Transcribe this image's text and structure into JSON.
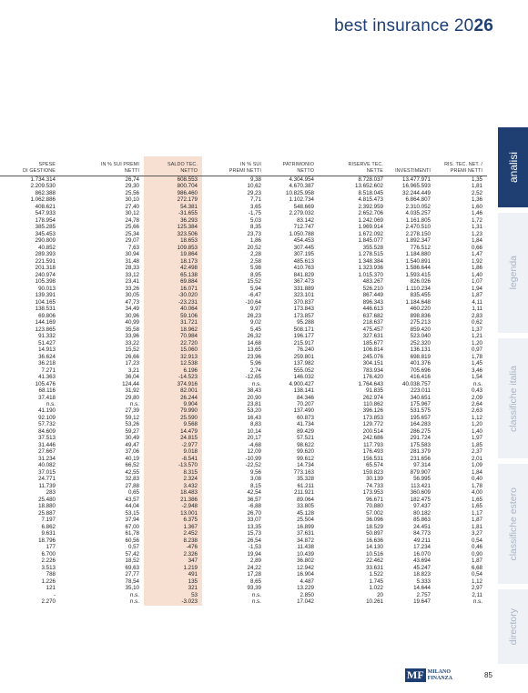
{
  "header": {
    "title_prefix": "best insurance 20",
    "title_bold": "26"
  },
  "table": {
    "headers": [
      "SPESE\nDI GESTIONE",
      "IN % SUI PREMI\nNETTI",
      "SALDO TEC.\nNETTO",
      "IN % SUI\nPREMI NETTI",
      "PATRIMONIO\nNETTO",
      "RISERVE TEC.\nNETTE",
      "INVESTIMENTI",
      "RIS. TEC. NET. /\nPREMI NETTI"
    ],
    "rows": [
      [
        "1.734.314",
        "26,74",
        "608.553",
        "9,38",
        "4.304.954",
        "8.728.037",
        "13.477.971",
        "1,35"
      ],
      [
        "2.209.530",
        "29,30",
        "800.704",
        "10,62",
        "4.670.387",
        "13.652.602",
        "16.965.593",
        "1,81"
      ],
      [
        "862.388",
        "25,56",
        "986.460",
        "29,23",
        "10.825.958",
        "8.518.045",
        "32.244.449",
        "2,52"
      ],
      [
        "1.062.886",
        "30,10",
        "272.179",
        "7,71",
        "1.102.734",
        "4.815.473",
        "6.864.807",
        "1,36"
      ],
      [
        "408.621",
        "27,40",
        "54.381",
        "3,65",
        "548.669",
        "2.392.959",
        "2.310.052",
        "1,60"
      ],
      [
        "547.933",
        "30,12",
        "-31.655",
        "-1,75",
        "2.279.032",
        "2.652.706",
        "4.035.257",
        "1,46"
      ],
      [
        "178.954",
        "24,78",
        "36.293",
        "5,03",
        "83.142",
        "1.242.069",
        "1.161.805",
        "1,72"
      ],
      [
        "385.285",
        "25,66",
        "125.384",
        "8,35",
        "712.747",
        "1.969.914",
        "2.470.510",
        "1,31"
      ],
      [
        "345.453",
        "25,34",
        "323.506",
        "23,73",
        "1.050.788",
        "1.672.092",
        "2.278.150",
        "1,23"
      ],
      [
        "290.809",
        "29,07",
        "18.653",
        "1,86",
        "454.453",
        "1.845.077",
        "1.892.347",
        "1,84"
      ],
      [
        "40.852",
        "7,63",
        "109.853",
        "20,52",
        "307.445",
        "355.528",
        "776.512",
        "0,66"
      ],
      [
        "289.393",
        "30,94",
        "19.864",
        "2,28",
        "307.195",
        "1.278.515",
        "1.184.880",
        "1,47"
      ],
      [
        "221.591",
        "31,48",
        "18.173",
        "2,58",
        "485.613",
        "1.348.384",
        "1.540.891",
        "1,92"
      ],
      [
        "201.318",
        "28,33",
        "42.498",
        "5,98",
        "410.763",
        "1.323.936",
        "1.586.644",
        "1,86"
      ],
      [
        "240.974",
        "33,12",
        "65.138",
        "8,95",
        "841.829",
        "1.015.370",
        "1.593.415",
        "1,40"
      ],
      [
        "105.398",
        "23,41",
        "69.884",
        "15,52",
        "367.473",
        "483.267",
        "826.026",
        "1,07"
      ],
      [
        "90.013",
        "33,26",
        "16.071",
        "5,94",
        "331.889",
        "526.210",
        "1.110.234",
        "1,94"
      ],
      [
        "139.391",
        "30,05",
        "-30.020",
        "-6,47",
        "323.101",
        "867.449",
        "835.455",
        "1,87"
      ],
      [
        "104.165",
        "47,73",
        "-23.231",
        "-10,64",
        "370.837",
        "896.343",
        "1.184.648",
        "4,11"
      ],
      [
        "138.531",
        "34,49",
        "40.064",
        "9,97",
        "173.843",
        "446.613",
        "460.220",
        "1,11"
      ],
      [
        "69.806",
        "30,96",
        "59.106",
        "26,23",
        "173.857",
        "637.682",
        "898.836",
        "2,83"
      ],
      [
        "144.169",
        "40,99",
        "31.721",
        "9,02",
        "95.288",
        "218.637",
        "275.213",
        "0,62"
      ],
      [
        "123.865",
        "35,58",
        "18.962",
        "5,45",
        "508.171",
        "475.457",
        "859.420",
        "1,37"
      ],
      [
        "91.332",
        "33,96",
        "70.984",
        "26,32",
        "196.177",
        "327.631",
        "523.040",
        "1,21"
      ],
      [
        "51.427",
        "33,22",
        "22.720",
        "14,68",
        "215.917",
        "185.677",
        "252.320",
        "1,20"
      ],
      [
        "14.913",
        "15,52",
        "15.060",
        "13,65",
        "76.240",
        "106.814",
        "136.131",
        "0,97"
      ],
      [
        "36.624",
        "26,66",
        "32.913",
        "23,96",
        "259.801",
        "245.076",
        "698.819",
        "1,78"
      ],
      [
        "36.218",
        "17,23",
        "12.538",
        "5,96",
        "137.982",
        "304.151",
        "401.376",
        "1,45"
      ],
      [
        "7.271",
        "3,21",
        "6.196",
        "2,74",
        "555.052",
        "783.934",
        "705.696",
        "3,46"
      ],
      [
        "41.363",
        "36,04",
        "-14.523",
        "-12,65",
        "146.032",
        "176.420",
        "416.416",
        "1,54"
      ],
      [
        "105.476",
        "124,44",
        "374.916",
        "n.s.",
        "4.900.427",
        "1.764.643",
        "40.038.757",
        "n.s."
      ],
      [
        "68.116",
        "31,92",
        "82.001",
        "38,43",
        "138.141",
        "91.835",
        "223.011",
        "0,43"
      ],
      [
        "37.418",
        "29,80",
        "26.244",
        "20,90",
        "84.346",
        "262.974",
        "340.651",
        "2,09"
      ],
      [
        "n.s.",
        "n.s.",
        "9.904",
        "23,81",
        "70.207",
        "110.862",
        "175.967",
        "2,64"
      ],
      [
        "41.190",
        "27,39",
        "79.990",
        "53,20",
        "137.490",
        "396.126",
        "531.575",
        "2,63"
      ],
      [
        "92.109",
        "59,12",
        "25.590",
        "16,43",
        "60.873",
        "173.853",
        "195.657",
        "1,12"
      ],
      [
        "57.732",
        "53,26",
        "9.568",
        "8,83",
        "41.734",
        "129.772",
        "164.283",
        "1,20"
      ],
      [
        "84.609",
        "59,27",
        "14.479",
        "10,14",
        "89.429",
        "200.514",
        "286.275",
        "1,40"
      ],
      [
        "37.513",
        "30,49",
        "24.815",
        "20,17",
        "57.521",
        "242.686",
        "291.724",
        "1,97"
      ],
      [
        "31.446",
        "49,47",
        "-2.977",
        "-4,68",
        "98.622",
        "117.793",
        "175.583",
        "1,85"
      ],
      [
        "27.667",
        "37,06",
        "9.018",
        "12,09",
        "99.620",
        "176.493",
        "281.379",
        "2,37"
      ],
      [
        "31.234",
        "40,19",
        "-8.541",
        "-10,99",
        "99.612",
        "156.531",
        "231.656",
        "2,01"
      ],
      [
        "40.082",
        "66,52",
        "-13.570",
        "-22,52",
        "14.734",
        "65.574",
        "97.314",
        "1,09"
      ],
      [
        "37.015",
        "42,55",
        "8.315",
        "9,56",
        "773.163",
        "159.823",
        "879.907",
        "1,84"
      ],
      [
        "24.771",
        "32,83",
        "2.324",
        "3,08",
        "35.328",
        "30.139",
        "56.995",
        "0,40"
      ],
      [
        "11.739",
        "27,88",
        "3.432",
        "8,15",
        "61.211",
        "74.733",
        "113.421",
        "1,78"
      ],
      [
        "283",
        "0,65",
        "18.483",
        "42,54",
        "211.921",
        "173.953",
        "360.609",
        "4,00"
      ],
      [
        "25.480",
        "43,57",
        "21.386",
        "36,57",
        "89.064",
        "96.671",
        "182.475",
        "1,65"
      ],
      [
        "18.880",
        "44,04",
        "-2.948",
        "-6,88",
        "33.805",
        "70.880",
        "97.437",
        "1,65"
      ],
      [
        "25.887",
        "53,15",
        "13.001",
        "26,70",
        "45.128",
        "57.002",
        "80.182",
        "1,17"
      ],
      [
        "7.197",
        "37,94",
        "6.375",
        "33,07",
        "25.504",
        "36.096",
        "85.863",
        "1,87"
      ],
      [
        "6.862",
        "67,00",
        "1.367",
        "13,35",
        "16.899",
        "18.529",
        "24.451",
        "1,81"
      ],
      [
        "9.631",
        "61,78",
        "2.452",
        "15,73",
        "37.631",
        "50.897",
        "84.773",
        "3,27"
      ],
      [
        "18.796",
        "60,56",
        "8.238",
        "26,54",
        "34.872",
        "16.636",
        "49.211",
        "0,54"
      ],
      [
        "177",
        "0,57",
        "-476",
        "-1,53",
        "11.438",
        "14.130",
        "17.234",
        "0,46"
      ],
      [
        "6.700",
        "57,42",
        "2.326",
        "19,94",
        "10.439",
        "10.516",
        "16.070",
        "0,90"
      ],
      [
        "2.226",
        "18,52",
        "347",
        "2,89",
        "36.802",
        "22.462",
        "43.694",
        "1,87"
      ],
      [
        "3.513",
        "69,63",
        "1.219",
        "24,22",
        "12.942",
        "33.631",
        "45.247",
        "6,68"
      ],
      [
        "788",
        "27,77",
        "491",
        "17,28",
        "16.904",
        "1.522",
        "18.823",
        "0,54"
      ],
      [
        "1.226",
        "78,54",
        "135",
        "8,65",
        "4.487",
        "1.745",
        "5.333",
        "1,12"
      ],
      [
        "121",
        "35,10",
        "321",
        "93,39",
        "13.229",
        "1.022",
        "14.644",
        "2,97"
      ],
      [
        "-",
        "n.s.",
        "53",
        "n.s.",
        "2.850",
        "20",
        "2.757",
        "2,11"
      ],
      [
        "2.270",
        "n.s.",
        "-3.023",
        "n.s.",
        "17.042",
        "10.261",
        "19.647",
        "n.s."
      ]
    ]
  },
  "sidebar": {
    "tabs": [
      "analisi",
      "legenda",
      "classifiche italia",
      "classifiche estero",
      "directory"
    ]
  },
  "footer": {
    "logo_mf": "MF",
    "logo_line1": "MILANO",
    "logo_line2": "FINANZA",
    "page_number": "85"
  }
}
